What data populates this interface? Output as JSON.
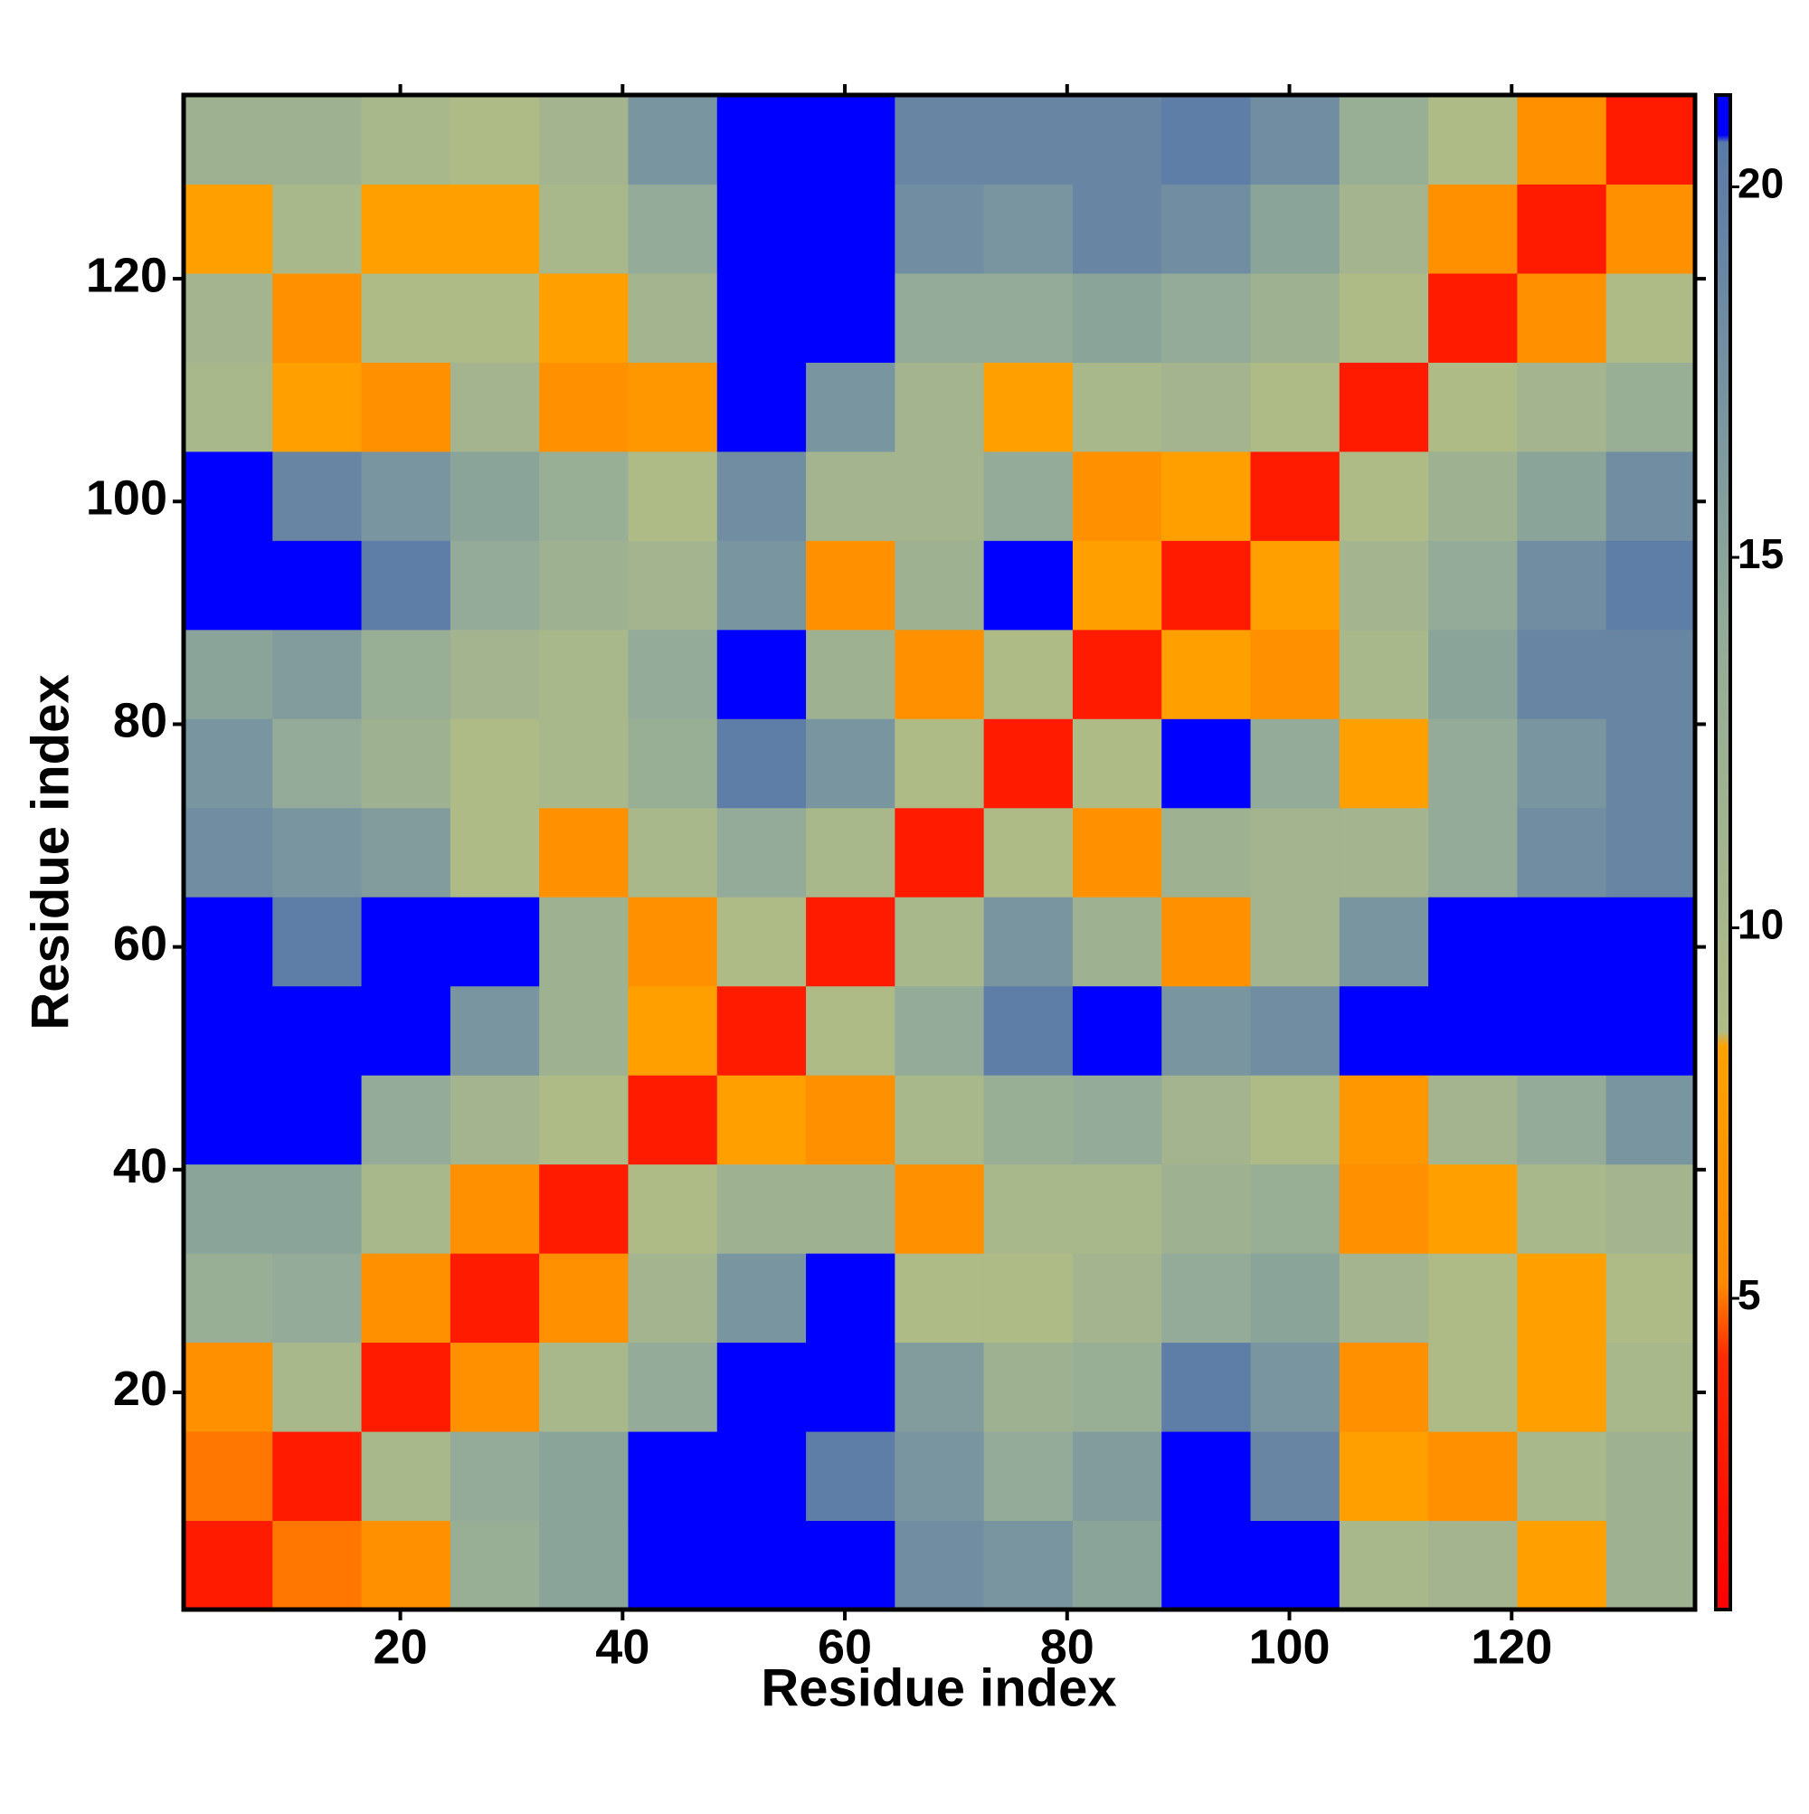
{
  "chart_data": {
    "type": "heatmap",
    "xlabel": "Residue index",
    "ylabel": "Residue index",
    "x": [
      4.5,
      12.5,
      20.5,
      28.5,
      36.5,
      44.5,
      52.5,
      60.5,
      68.5,
      76.5,
      84.5,
      92.5,
      100.5,
      108.5,
      116.5,
      124.5,
      132.5
    ],
    "y": [
      4.5,
      12.5,
      20.5,
      28.5,
      36.5,
      44.5,
      52.5,
      60.5,
      68.5,
      76.5,
      84.5,
      92.5,
      100.5,
      108.5,
      116.5,
      124.5,
      132.5
    ],
    "z": [
      [
        3,
        5,
        6,
        13,
        15,
        21,
        21,
        21,
        18,
        17,
        15,
        21,
        21,
        10,
        11,
        8,
        12
      ],
      [
        5,
        3,
        10,
        14,
        15,
        21,
        21,
        20,
        17,
        14,
        16,
        21,
        19,
        8,
        6,
        10,
        12
      ],
      [
        6,
        10,
        3,
        6,
        10,
        14,
        21,
        21,
        16,
        12,
        13,
        20,
        17,
        6,
        9,
        8,
        10
      ],
      [
        13,
        14,
        6,
        3,
        6,
        11,
        17,
        21,
        9,
        9,
        11,
        14,
        15,
        11,
        9,
        8,
        9
      ],
      [
        15,
        15,
        10,
        6,
        3,
        9,
        12,
        12,
        6,
        10,
        10,
        12,
        13,
        6,
        8,
        10,
        11
      ],
      [
        21,
        21,
        14,
        11,
        9,
        3,
        8,
        6,
        10,
        13,
        14,
        11,
        9,
        7,
        11,
        14,
        17
      ],
      [
        21,
        21,
        21,
        17,
        12,
        8,
        3,
        9,
        14,
        20,
        21,
        17,
        18,
        21,
        21,
        21,
        21
      ],
      [
        21,
        20,
        21,
        21,
        12,
        6,
        9,
        3,
        10,
        17,
        12,
        6,
        11,
        17,
        21,
        21,
        21
      ],
      [
        18,
        17,
        16,
        9,
        6,
        10,
        14,
        10,
        3,
        9,
        6,
        12,
        11,
        11,
        14,
        18,
        19
      ],
      [
        17,
        14,
        12,
        9,
        10,
        13,
        20,
        17,
        9,
        3,
        9,
        21,
        14,
        8,
        14,
        17,
        19
      ],
      [
        15,
        16,
        13,
        11,
        10,
        14,
        21,
        12,
        6,
        9,
        3,
        8,
        6,
        10,
        15,
        19,
        19
      ],
      [
        21,
        21,
        20,
        14,
        12,
        11,
        17,
        6,
        12,
        21,
        8,
        3,
        8,
        11,
        14,
        18,
        20
      ],
      [
        21,
        19,
        17,
        15,
        13,
        9,
        18,
        11,
        11,
        14,
        6,
        8,
        3,
        9,
        12,
        15,
        18
      ],
      [
        10,
        8,
        6,
        11,
        6,
        7,
        21,
        17,
        11,
        8,
        10,
        11,
        9,
        3,
        9,
        11,
        13
      ],
      [
        11,
        6,
        9,
        9,
        8,
        11,
        21,
        21,
        14,
        14,
        15,
        14,
        12,
        9,
        3,
        6,
        9
      ],
      [
        8,
        10,
        8,
        8,
        10,
        14,
        21,
        21,
        18,
        17,
        19,
        18,
        15,
        11,
        6,
        3,
        6
      ],
      [
        12,
        12,
        10,
        9,
        11,
        17,
        21,
        21,
        19,
        19,
        19,
        20,
        18,
        13,
        9,
        6,
        3
      ]
    ],
    "xlim": [
      0.5,
      136.5
    ],
    "ylim": [
      0.5,
      136.5
    ],
    "xticks": [
      20,
      40,
      60,
      80,
      100,
      120
    ],
    "yticks": [
      20,
      40,
      60,
      80,
      100,
      120
    ],
    "clim": [
      0.8,
      21.24
    ],
    "cticks": [
      5,
      10,
      15,
      20
    ],
    "colorscale": [
      {
        "value": 0.8,
        "color": "#ff0000"
      },
      {
        "value": 4.2,
        "color": "#ff2a00"
      },
      {
        "value": 5.2,
        "color": "#ff8a00"
      },
      {
        "value": 8.4,
        "color": "#ffa200"
      },
      {
        "value": 8.6,
        "color": "#b0bc86"
      },
      {
        "value": 14,
        "color": "#93ab98"
      },
      {
        "value": 20.6,
        "color": "#5a7aa8"
      },
      {
        "value": 20.7,
        "color": "#0000ff"
      },
      {
        "value": 21.24,
        "color": "#0000ff"
      }
    ]
  }
}
